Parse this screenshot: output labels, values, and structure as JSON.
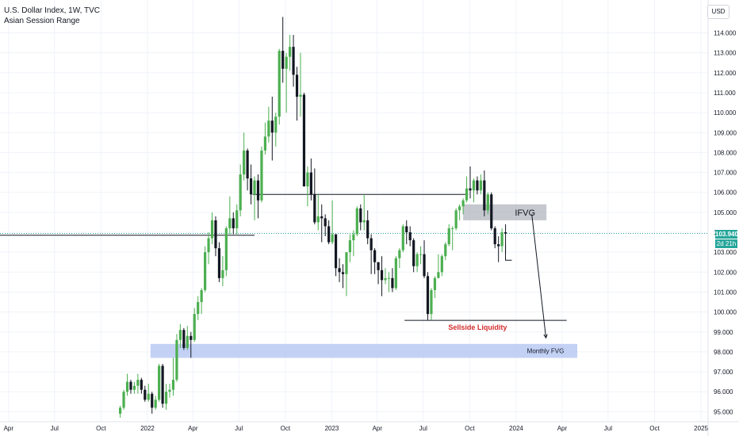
{
  "header": {
    "title": "U.S. Dollar Index, 1W, TVC",
    "indicator": "Asian Session Range",
    "currency": "USD"
  },
  "price_tag": {
    "value": "103.940",
    "timer": "2d 21h"
  },
  "colors": {
    "up": "#4caf50",
    "down": "#131722",
    "last_price": "#26a69a",
    "ifvg_zone": "#b2b5be",
    "fvg_zone": "#b9c9f3",
    "liquidity_text": "#d32f2f",
    "grid": "#f0f3fa"
  },
  "chart_data": {
    "type": "candlestick",
    "ylim": [
      94.8,
      114.8
    ],
    "x_range": [
      "2021-03-15",
      "2025-01-15"
    ],
    "y_ticks": [
      "114.000",
      "113.000",
      "112.000",
      "111.000",
      "110.000",
      "109.000",
      "108.000",
      "107.000",
      "106.000",
      "105.000",
      "104.000",
      "103.000",
      "102.000",
      "101.000",
      "100.000",
      "99.000",
      "98.000",
      "97.000",
      "96.000",
      "95.000"
    ],
    "x_ticks": [
      {
        "label": "Apr",
        "date": "2021-04-01"
      },
      {
        "label": "Jul",
        "date": "2021-07-01"
      },
      {
        "label": "Oct",
        "date": "2021-10-01"
      },
      {
        "label": "2022",
        "date": "2022-01-01"
      },
      {
        "label": "Apr",
        "date": "2022-04-01"
      },
      {
        "label": "Jul",
        "date": "2022-07-01"
      },
      {
        "label": "Oct",
        "date": "2022-10-01"
      },
      {
        "label": "2023",
        "date": "2023-01-01"
      },
      {
        "label": "Apr",
        "date": "2023-04-01"
      },
      {
        "label": "Jul",
        "date": "2023-07-01"
      },
      {
        "label": "Oct",
        "date": "2023-10-01"
      },
      {
        "label": "2024",
        "date": "2024-01-01"
      },
      {
        "label": "Apr",
        "date": "2024-04-01"
      },
      {
        "label": "Jul",
        "date": "2024-07-01"
      },
      {
        "label": "Oct",
        "date": "2024-10-01"
      },
      {
        "label": "2025",
        "date": "2025-01-01"
      }
    ],
    "last_price": 103.94,
    "candles": [
      [
        "2021-11-08",
        94.9,
        95.2,
        94.7,
        95.3
      ],
      [
        "2021-11-15",
        95.2,
        96.0,
        95.1,
        96.1
      ],
      [
        "2021-11-22",
        96.0,
        96.5,
        95.8,
        96.9
      ],
      [
        "2021-11-29",
        96.5,
        96.1,
        95.9,
        96.6
      ],
      [
        "2021-12-06",
        96.1,
        96.3,
        95.9,
        96.5
      ],
      [
        "2021-12-13",
        96.3,
        96.6,
        95.9,
        96.9
      ],
      [
        "2021-12-20",
        96.6,
        96.1,
        95.9,
        96.7
      ],
      [
        "2021-12-27",
        96.1,
        95.6,
        95.5,
        96.3
      ],
      [
        "2022-01-03",
        95.6,
        95.9,
        95.5,
        96.4
      ],
      [
        "2022-01-10",
        95.9,
        95.2,
        94.9,
        96.0
      ],
      [
        "2022-01-17",
        95.2,
        95.6,
        95.1,
        95.8
      ],
      [
        "2022-01-24",
        95.6,
        97.3,
        95.5,
        97.4
      ],
      [
        "2022-01-31",
        97.3,
        95.4,
        95.2,
        97.4
      ],
      [
        "2022-02-07",
        95.4,
        96.0,
        95.1,
        96.4
      ],
      [
        "2022-02-14",
        96.0,
        96.1,
        95.7,
        96.4
      ],
      [
        "2022-02-21",
        96.1,
        96.6,
        95.8,
        97.7
      ],
      [
        "2022-02-28",
        96.6,
        98.6,
        96.5,
        98.9
      ],
      [
        "2022-03-07",
        98.6,
        99.1,
        98.2,
        99.4
      ],
      [
        "2022-03-14",
        99.1,
        98.2,
        98.1,
        99.2
      ],
      [
        "2022-03-21",
        98.2,
        98.8,
        98.1,
        99.3
      ],
      [
        "2022-03-28",
        98.8,
        98.6,
        97.7,
        99.0
      ],
      [
        "2022-04-04",
        98.6,
        99.9,
        98.5,
        100.2
      ],
      [
        "2022-04-11",
        99.9,
        100.5,
        99.6,
        100.8
      ],
      [
        "2022-04-18",
        100.5,
        101.1,
        99.9,
        101.2
      ],
      [
        "2022-04-25",
        101.1,
        103.0,
        101.0,
        103.3
      ],
      [
        "2022-05-02",
        103.0,
        103.7,
        102.4,
        104.0
      ],
      [
        "2022-05-09",
        103.7,
        104.6,
        103.4,
        105.0
      ],
      [
        "2022-05-16",
        104.6,
        103.2,
        102.8,
        104.8
      ],
      [
        "2022-05-23",
        103.2,
        101.7,
        101.5,
        103.5
      ],
      [
        "2022-05-30",
        101.7,
        102.1,
        101.3,
        102.8
      ],
      [
        "2022-06-06",
        102.1,
        104.2,
        101.8,
        104.3
      ],
      [
        "2022-06-13",
        104.2,
        104.7,
        103.9,
        105.8
      ],
      [
        "2022-06-20",
        104.7,
        104.2,
        103.9,
        105.0
      ],
      [
        "2022-06-27",
        104.2,
        105.1,
        103.9,
        105.4
      ],
      [
        "2022-07-04",
        105.1,
        106.9,
        104.8,
        107.4
      ],
      [
        "2022-07-11",
        106.9,
        108.1,
        106.6,
        109.0
      ],
      [
        "2022-07-18",
        108.1,
        106.7,
        106.1,
        108.2
      ],
      [
        "2022-07-25",
        106.7,
        105.9,
        105.4,
        107.4
      ],
      [
        "2022-08-01",
        105.9,
        106.6,
        104.6,
        106.8
      ],
      [
        "2022-08-08",
        106.6,
        105.6,
        104.7,
        106.9
      ],
      [
        "2022-08-15",
        105.6,
        108.1,
        105.5,
        108.3
      ],
      [
        "2022-08-22",
        108.1,
        108.8,
        107.9,
        109.5
      ],
      [
        "2022-08-29",
        108.8,
        109.6,
        108.5,
        110.3
      ],
      [
        "2022-09-05",
        109.6,
        109.0,
        107.6,
        110.8
      ],
      [
        "2022-09-12",
        109.0,
        109.8,
        108.3,
        110.0
      ],
      [
        "2022-09-19",
        109.8,
        113.1,
        109.4,
        113.2
      ],
      [
        "2022-09-26",
        113.1,
        112.2,
        111.5,
        114.8
      ],
      [
        "2022-10-03",
        112.2,
        112.8,
        110.0,
        113.0
      ],
      [
        "2022-10-10",
        112.8,
        113.3,
        112.1,
        113.9
      ],
      [
        "2022-10-17",
        113.3,
        111.9,
        111.3,
        113.9
      ],
      [
        "2022-10-24",
        111.9,
        110.8,
        109.6,
        112.3
      ],
      [
        "2022-10-31",
        110.8,
        110.9,
        109.8,
        113.0
      ],
      [
        "2022-11-07",
        110.9,
        106.3,
        106.3,
        111.0
      ],
      [
        "2022-11-14",
        106.3,
        107.0,
        105.3,
        107.3
      ],
      [
        "2022-11-21",
        107.0,
        105.9,
        105.6,
        107.7
      ],
      [
        "2022-11-28",
        105.9,
        104.5,
        104.4,
        107.2
      ],
      [
        "2022-12-05",
        104.5,
        104.8,
        104.1,
        105.9
      ],
      [
        "2022-12-12",
        104.8,
        104.7,
        103.5,
        105.4
      ],
      [
        "2022-12-19",
        104.7,
        104.3,
        103.8,
        104.9
      ],
      [
        "2022-12-26",
        104.3,
        103.5,
        103.4,
        104.6
      ],
      [
        "2023-01-02",
        103.5,
        103.9,
        103.4,
        105.6
      ],
      [
        "2023-01-09",
        103.9,
        102.2,
        101.8,
        103.9
      ],
      [
        "2023-01-16",
        102.2,
        102.0,
        101.5,
        102.7
      ],
      [
        "2023-01-23",
        102.0,
        101.9,
        101.2,
        102.4
      ],
      [
        "2023-01-30",
        101.9,
        103.0,
        100.8,
        103.0
      ],
      [
        "2023-02-06",
        103.0,
        103.6,
        102.5,
        103.9
      ],
      [
        "2023-02-13",
        103.6,
        103.9,
        102.8,
        104.1
      ],
      [
        "2023-02-20",
        103.9,
        105.2,
        103.8,
        105.3
      ],
      [
        "2023-02-27",
        105.2,
        104.5,
        104.1,
        105.4
      ],
      [
        "2023-03-06",
        104.5,
        104.6,
        104.1,
        105.9
      ],
      [
        "2023-03-13",
        104.6,
        103.7,
        103.4,
        105.1
      ],
      [
        "2023-03-20",
        103.7,
        103.1,
        101.9,
        103.9
      ],
      [
        "2023-03-27",
        103.1,
        102.5,
        101.9,
        103.2
      ],
      [
        "2023-04-03",
        102.5,
        102.1,
        101.4,
        102.5
      ],
      [
        "2023-04-10",
        102.1,
        101.6,
        100.8,
        102.8
      ],
      [
        "2023-04-17",
        101.6,
        101.7,
        101.4,
        102.2
      ],
      [
        "2023-04-24",
        101.7,
        101.7,
        101.0,
        102.0
      ],
      [
        "2023-05-01",
        101.7,
        101.2,
        101.0,
        102.2
      ],
      [
        "2023-05-08",
        101.2,
        102.7,
        101.1,
        102.8
      ],
      [
        "2023-05-15",
        102.7,
        103.1,
        102.2,
        103.2
      ],
      [
        "2023-05-22",
        103.1,
        104.3,
        103.0,
        104.4
      ],
      [
        "2023-05-29",
        104.3,
        104.0,
        103.4,
        104.6
      ],
      [
        "2023-06-05",
        104.0,
        103.6,
        103.3,
        104.3
      ],
      [
        "2023-06-12",
        103.6,
        102.3,
        102.0,
        103.7
      ],
      [
        "2023-06-19",
        102.3,
        102.9,
        102.0,
        103.0
      ],
      [
        "2023-06-26",
        102.9,
        102.9,
        102.4,
        103.3
      ],
      [
        "2023-07-03",
        102.9,
        101.8,
        101.7,
        103.6
      ],
      [
        "2023-07-10",
        101.8,
        99.9,
        99.6,
        102.0
      ],
      [
        "2023-07-17",
        99.9,
        101.1,
        99.6,
        101.2
      ],
      [
        "2023-07-24",
        101.1,
        101.7,
        100.7,
        101.8
      ],
      [
        "2023-07-31",
        101.7,
        102.0,
        101.7,
        102.9
      ],
      [
        "2023-08-07",
        102.0,
        102.8,
        101.8,
        102.9
      ],
      [
        "2023-08-14",
        102.8,
        103.4,
        102.6,
        103.5
      ],
      [
        "2023-08-21",
        103.4,
        104.2,
        103.3,
        104.4
      ],
      [
        "2023-08-28",
        104.2,
        104.2,
        103.1,
        104.3
      ],
      [
        "2023-09-04",
        104.2,
        105.1,
        104.1,
        105.2
      ],
      [
        "2023-09-11",
        105.1,
        105.3,
        104.6,
        105.4
      ],
      [
        "2023-09-18",
        105.3,
        105.6,
        104.9,
        105.7
      ],
      [
        "2023-09-25",
        105.6,
        106.2,
        105.5,
        106.8
      ],
      [
        "2023-10-02",
        106.2,
        106.1,
        105.7,
        107.3
      ],
      [
        "2023-10-09",
        106.1,
        106.6,
        105.5,
        106.7
      ],
      [
        "2023-10-16",
        106.6,
        106.1,
        105.9,
        106.8
      ],
      [
        "2023-10-23",
        106.1,
        106.6,
        105.9,
        106.9
      ],
      [
        "2023-10-30",
        106.6,
        105.1,
        104.8,
        107.1
      ],
      [
        "2023-11-06",
        105.1,
        105.9,
        104.9,
        106.0
      ],
      [
        "2023-11-13",
        105.9,
        104.2,
        104.1,
        106.0
      ],
      [
        "2023-11-20",
        104.2,
        103.4,
        103.2,
        104.3
      ],
      [
        "2023-11-27",
        103.4,
        103.3,
        102.5,
        103.8
      ],
      [
        "2023-12-04",
        103.3,
        104.0,
        103.0,
        104.2
      ],
      [
        "2023-12-11",
        104.0,
        103.94,
        102.9,
        104.4
      ]
    ],
    "zones": [
      {
        "label": "IFVG",
        "from": "2023-09-18",
        "to": "2024-03-01",
        "y_low": 104.6,
        "y_high": 105.4
      },
      {
        "label": "Monthly FVG",
        "from": "2022-01-07",
        "to": "2024-05-01",
        "y_low": 97.7,
        "y_high": 98.4
      }
    ],
    "levels": [
      {
        "name": "range-high",
        "from": "2022-07-28",
        "to": "2023-09-28",
        "y": 105.9
      },
      {
        "name": "range-low",
        "from": "2021-03-15",
        "to": "2022-08-01",
        "y": 103.85
      },
      {
        "name": "sellside-liquidity",
        "label": "Sellside Liquidity",
        "from": "2023-05-25",
        "to": "2024-04-10",
        "y": 99.58
      }
    ],
    "projection": [
      {
        "date": "2024-02-01",
        "y": 104.9
      },
      {
        "date": "2024-02-29",
        "y": 98.7
      }
    ],
    "marker": {
      "date": "2023-12-14",
      "y_top": 103.4,
      "y_bottom": 102.6
    }
  }
}
